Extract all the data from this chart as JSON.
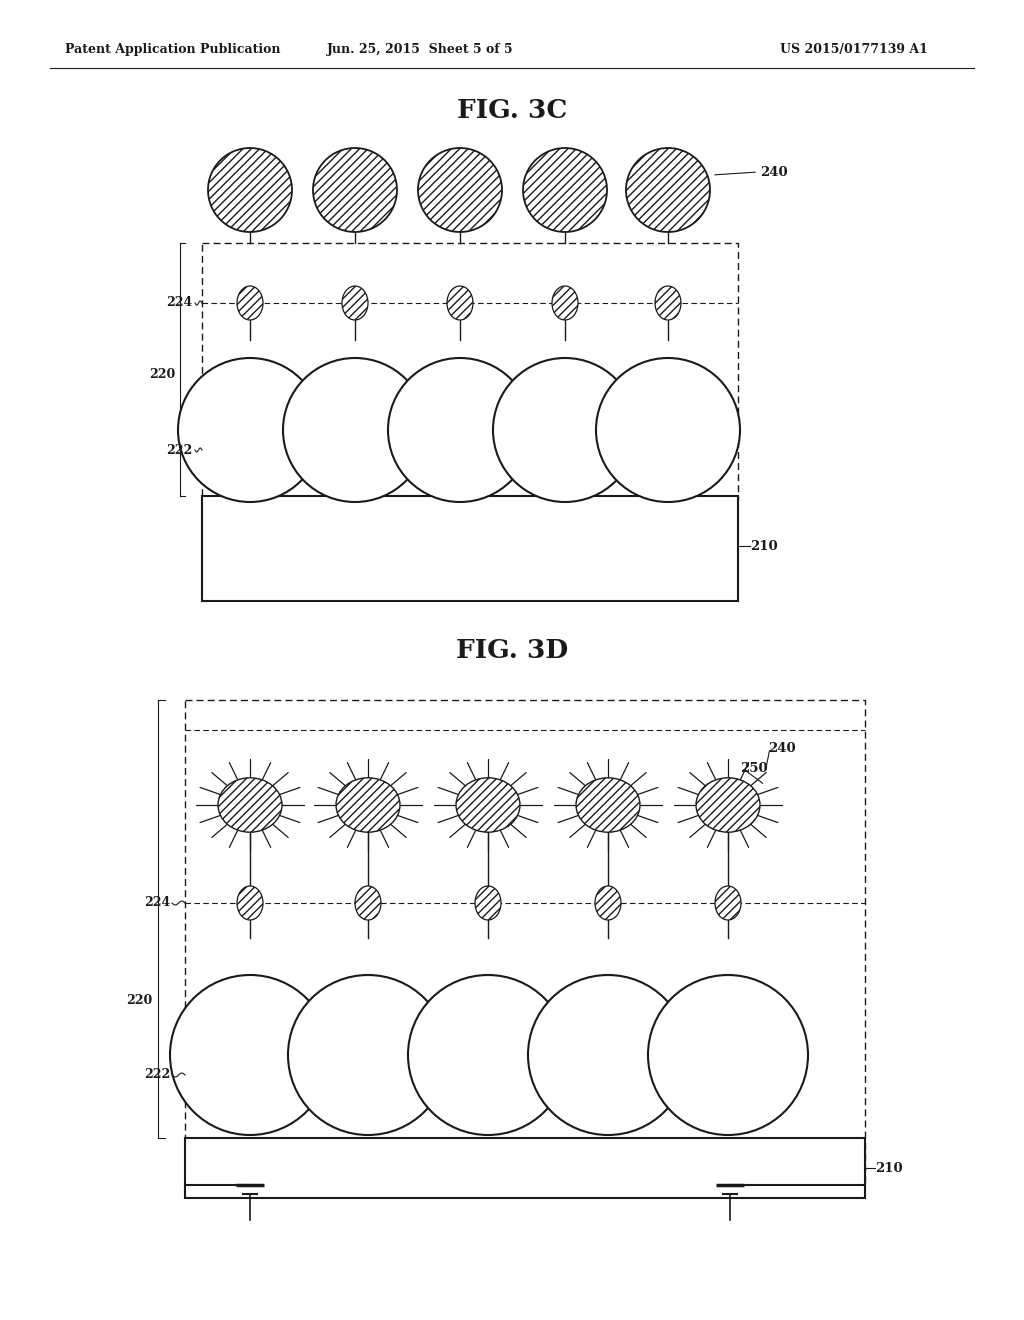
{
  "header_left": "Patent Application Publication",
  "header_mid": "Jun. 25, 2015  Sheet 5 of 5",
  "header_right": "US 2015/0177139 A1",
  "fig3c_title": "FIG. 3C",
  "fig3d_title": "FIG. 3D",
  "label_210": "210",
  "label_220": "220",
  "label_222": "222",
  "label_224": "224",
  "label_240": "240",
  "label_250": "250",
  "bg_color": "#ffffff",
  "line_color": "#1a1a1a"
}
